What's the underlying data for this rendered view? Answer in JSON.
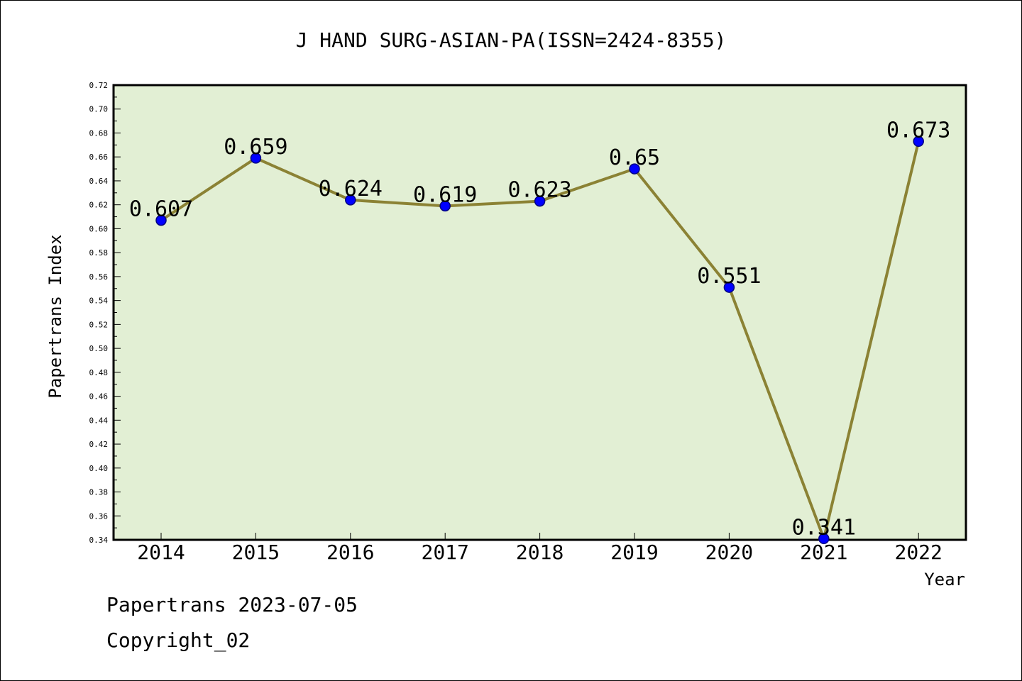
{
  "chart_data": {
    "type": "line",
    "title": "J HAND SURG-ASIAN-PA(ISSN=2424-8355)",
    "xlabel": "Year",
    "ylabel": "Papertrans Index",
    "categories": [
      "2014",
      "2015",
      "2016",
      "2017",
      "2018",
      "2019",
      "2020",
      "2021",
      "2022"
    ],
    "series": [
      {
        "values": [
          0.607,
          0.659,
          0.624,
          0.619,
          0.623,
          0.65,
          0.551,
          0.341,
          0.673
        ],
        "data_labels": [
          "0.607",
          "0.659",
          "0.624",
          "0.619",
          "0.623",
          "0.65",
          "0.551",
          "0.341",
          "0.673"
        ]
      }
    ],
    "ylim": [
      0.34,
      0.72
    ],
    "ytick_labels": [
      "0.34",
      "0.36",
      "0.38",
      "0.40",
      "0.42",
      "0.44",
      "0.46",
      "0.48",
      "0.50",
      "0.52",
      "0.54",
      "0.56",
      "0.58",
      "0.60",
      "0.62",
      "0.64",
      "0.66",
      "0.68",
      "0.70",
      "0.72"
    ],
    "grid": false,
    "legend": "none",
    "colors": {
      "plot_background": "#e2efd4",
      "line": "#8b8234",
      "marker_fill": "#0000ff",
      "marker_edge": "#000080",
      "axis": "#000000"
    }
  },
  "footer": {
    "date_text": "Papertrans 2023-07-05",
    "copyright_text": "Copyright_02"
  }
}
